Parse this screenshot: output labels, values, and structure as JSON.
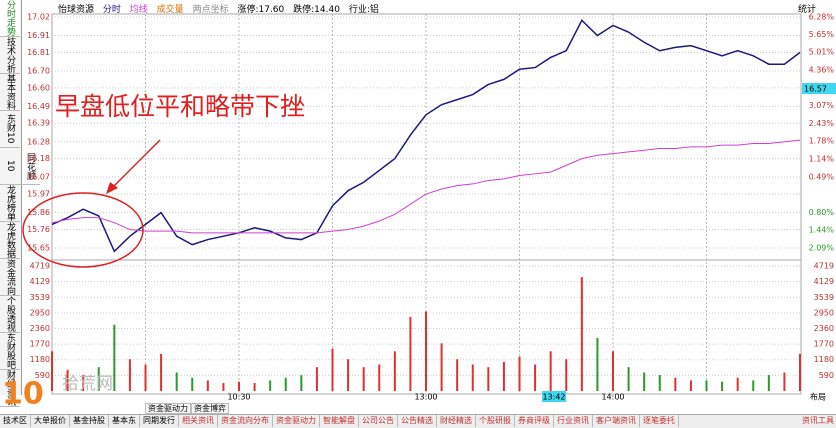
{
  "header": {
    "name": "怡球资源",
    "two_point": "两点坐标",
    "limit_up": "涨停:17.60",
    "limit_down": "跌停:14.40",
    "industry": "行业:铝",
    "stats": "统计"
  },
  "side_tabs": [
    "分时走势",
    "技术分析",
    "基本资料",
    "东财10",
    "同花顺10",
    "龙虎榜单",
    "龙虎数据",
    "资金流向",
    "个股透视",
    "东财股吧",
    "财经资讯"
  ],
  "annotation": "早盘低位平和略带下挫",
  "watermark": "拾荒网",
  "cursor": {
    "time": "13:42",
    "price": "16.57"
  },
  "layout_button": "布局",
  "bottom_tabs_upper": [
    "资金驱动力",
    "资金博弈"
  ],
  "bottom_tabs": [
    "技术区",
    "大单报价",
    "基金持股",
    "基本东",
    "同期发行",
    "相关资讯",
    "资金流向分布",
    "资金驱动力",
    "智能解盘",
    "公司公告",
    "公告精选",
    "财经精选",
    "个股研报",
    "券商评级",
    "行业资讯",
    "客户端资讯",
    "逐笔委托"
  ],
  "bottom_right": "资讯工具",
  "chart_data": {
    "type": "line",
    "x": [
      "09:30",
      "09:35",
      "09:40",
      "09:45",
      "09:50",
      "09:55",
      "10:00",
      "10:05",
      "10:10",
      "10:15",
      "10:20",
      "10:25",
      "10:30",
      "10:35",
      "10:40",
      "10:45",
      "10:50",
      "10:55",
      "11:00",
      "11:05",
      "11:10",
      "11:15",
      "11:20",
      "11:25",
      "13:00",
      "13:05",
      "13:10",
      "13:15",
      "13:20",
      "13:25",
      "13:30",
      "13:35",
      "13:40",
      "13:45",
      "13:50",
      "13:55",
      "14:00",
      "14:05",
      "14:10",
      "14:15",
      "14:20",
      "14:25",
      "14:30",
      "14:35",
      "14:40",
      "14:45",
      "14:50",
      "14:55",
      "15:00"
    ],
    "xticks": [
      "10:30",
      "13:00",
      "14:00"
    ],
    "series": [
      {
        "name": "分时",
        "color": "#1a1a80",
        "values": [
          15.79,
          15.83,
          15.88,
          15.84,
          15.63,
          15.72,
          15.79,
          15.86,
          15.72,
          15.67,
          15.7,
          15.72,
          15.74,
          15.77,
          15.75,
          15.71,
          15.7,
          15.74,
          15.9,
          15.99,
          16.04,
          16.11,
          16.18,
          16.32,
          16.44,
          16.5,
          16.53,
          16.56,
          16.62,
          16.65,
          16.71,
          16.72,
          16.78,
          16.82,
          17.0,
          16.91,
          16.97,
          16.93,
          16.87,
          16.82,
          16.84,
          16.85,
          16.82,
          16.79,
          16.82,
          16.79,
          16.74,
          16.74,
          16.81
        ]
      },
      {
        "name": "均线",
        "color": "#d040d0",
        "values": [
          15.8,
          15.82,
          15.83,
          15.83,
          15.8,
          15.76,
          15.75,
          15.75,
          15.75,
          15.74,
          15.74,
          15.74,
          15.74,
          15.74,
          15.74,
          15.74,
          15.74,
          15.74,
          15.75,
          15.76,
          15.78,
          15.81,
          15.85,
          15.91,
          15.97,
          16.0,
          16.02,
          16.03,
          16.05,
          16.06,
          16.08,
          16.09,
          16.1,
          16.14,
          16.18,
          16.2,
          16.21,
          16.22,
          16.23,
          16.24,
          16.24,
          16.25,
          16.25,
          16.26,
          16.26,
          16.27,
          16.27,
          16.28,
          16.29
        ]
      }
    ],
    "ylim": [
      15.65,
      17.02
    ],
    "yticks": [
      15.65,
      15.76,
      15.86,
      15.97,
      16.07,
      16.18,
      16.28,
      16.39,
      16.49,
      {
        "value": 16.6,
        "label": "16.60"
      },
      {
        "value": 16.7,
        "label": "16.70"
      },
      16.81,
      16.91,
      17.02
    ],
    "y2lim": [
      -2.09,
      6.28
    ],
    "y2ticks": [
      {
        "value": -2.09,
        "label": "2.09%"
      },
      {
        "value": -1.44,
        "label": "1.44%"
      },
      {
        "value": -0.8,
        "label": "0.80%"
      },
      {
        "value": 0.49,
        "label": "0.49%"
      },
      {
        "value": 1.14,
        "label": "1.14%"
      },
      {
        "value": 1.78,
        "label": "1.78%"
      },
      {
        "value": 2.43,
        "label": "2.43%"
      },
      {
        "value": 3.07,
        "label": "3.07%"
      },
      {
        "value": 3.72,
        "label": "3.72%"
      },
      {
        "value": 4.36,
        "label": "4.36%"
      },
      {
        "value": 5.01,
        "label": "5.01%"
      },
      {
        "value": 5.65,
        "label": "5.65%"
      },
      {
        "value": 6.28,
        "label": "6.28%"
      }
    ],
    "volume": {
      "name": "成交量",
      "up_color": "#e03030",
      "down_color": "#2a9a2a",
      "ylim": [
        0,
        4719
      ],
      "yticks": [
        590,
        1180,
        1770,
        2360,
        2950,
        3539,
        4129,
        4719
      ],
      "values": [
        1500,
        800,
        600,
        900,
        2500,
        1200,
        1000,
        1400,
        700,
        500,
        400,
        300,
        350,
        300,
        400,
        500,
        600,
        900,
        1600,
        1200,
        900,
        1000,
        1500,
        2800,
        3000,
        1800,
        1200,
        1000,
        900,
        1100,
        1300,
        1000,
        1500,
        1200,
        4300,
        2000,
        1500,
        900,
        700,
        600,
        500,
        400,
        400,
        350,
        500,
        400,
        600,
        700,
        1400
      ]
    }
  }
}
